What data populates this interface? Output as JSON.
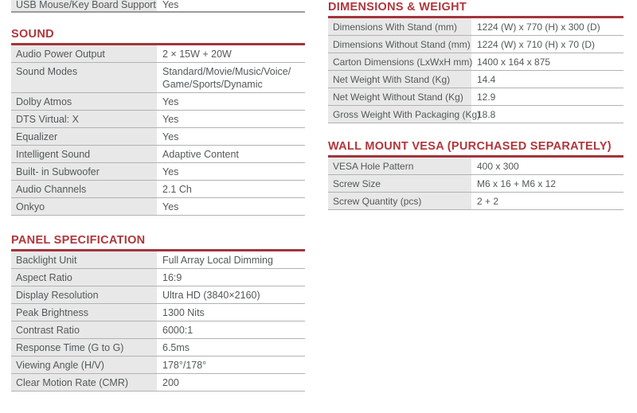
{
  "partial_row": {
    "label": "USB Mouse/Key Board Support",
    "value": "Yes"
  },
  "left_sections": [
    {
      "title": "SOUND",
      "rows": [
        [
          "Audio Power Output",
          "2 × 15W + 20W"
        ],
        [
          "Sound Modes",
          "Standard/Movie/Music/Voice/\nGame/Sports/Dynamic"
        ],
        [
          "Dolby Atmos",
          "Yes"
        ],
        [
          "DTS Virtual: X",
          "Yes"
        ],
        [
          "Equalizer",
          "Yes"
        ],
        [
          "Intelligent Sound",
          "Adaptive Content"
        ],
        [
          "Built- in Subwoofer",
          "Yes"
        ],
        [
          "Audio Channels",
          "2.1 Ch"
        ],
        [
          "Onkyo",
          "Yes"
        ]
      ]
    },
    {
      "title": "PANEL SPECIFICATION",
      "rows": [
        [
          "Backlight Unit",
          "Full Array Local Dimming"
        ],
        [
          "Aspect Ratio",
          "16:9"
        ],
        [
          "Display Resolution",
          "Ultra HD (3840×2160)"
        ],
        [
          "Peak Brightness",
          "1300 Nits"
        ],
        [
          "Contrast Ratio",
          "6000:1"
        ],
        [
          "Response Time (G to G)",
          "6.5ms"
        ],
        [
          "Viewing Angle (H/V)",
          "178°/178°"
        ],
        [
          "Clear Motion Rate (CMR)",
          "200"
        ]
      ]
    }
  ],
  "right_sections": [
    {
      "title": "DIMENSIONS & WEIGHT",
      "rows": [
        [
          "Dimensions With Stand (mm)",
          "1224 (W) x 770 (H) x 300 (D)"
        ],
        [
          "Dimensions Without Stand (mm)",
          "1224 (W) x 710 (H) x 70 (D)"
        ],
        [
          "Carton Dimensions (LxWxH mm)",
          "1400 x 164 x 875"
        ],
        [
          "Net Weight With Stand (Kg)",
          "14.4"
        ],
        [
          "Net Weight Without Stand (Kg)",
          "12.9"
        ],
        [
          "Gross Weight With Packaging (Kg)",
          "18.8"
        ]
      ]
    },
    {
      "title": "WALL MOUNT VESA (PURCHASED SEPARATELY)",
      "rows": [
        [
          "VESA Hole Pattern",
          "400 x 300"
        ],
        [
          "Screw Size",
          "M6 x 16 + M6 x 12"
        ],
        [
          "Screw Quantity (pcs)",
          "2 + 2"
        ]
      ]
    }
  ],
  "colors": {
    "header_red": "#b1363b",
    "rule_red": "#a4343a",
    "label_bg": "#e8e8e8",
    "row_border": "#b2b2b2",
    "text": "#54585a"
  }
}
